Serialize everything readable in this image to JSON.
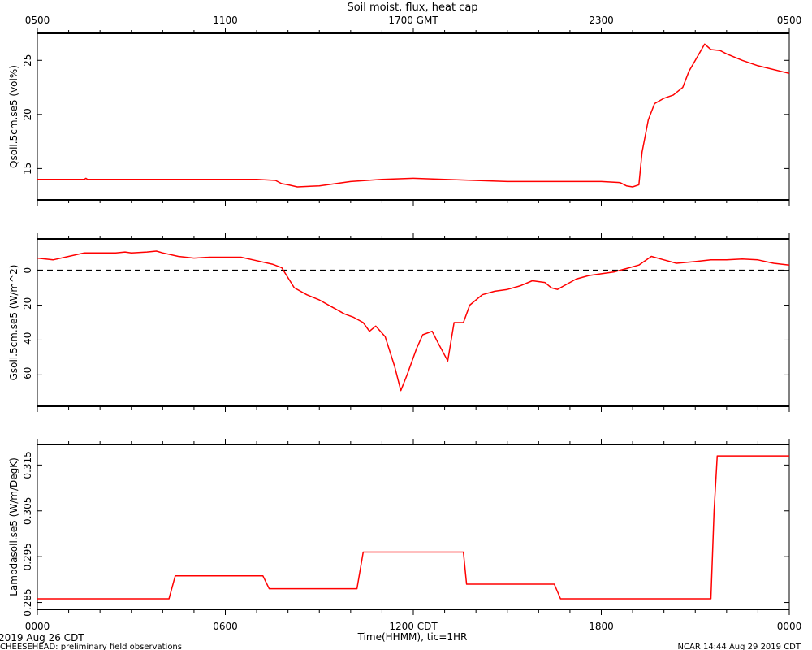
{
  "title": "Soil moist, flux, heat cap",
  "top_axis": {
    "ticks": [
      {
        "t": 0,
        "label": "0500"
      },
      {
        "t": 6,
        "label": "1100"
      },
      {
        "t": 12,
        "label": "1700 GMT"
      },
      {
        "t": 18,
        "label": "2300"
      },
      {
        "t": 24,
        "label": "0500"
      }
    ]
  },
  "bottom_axis": {
    "ticks": [
      {
        "t": 0,
        "label": "0000"
      },
      {
        "t": 6,
        "label": "0600"
      },
      {
        "t": 12,
        "label": "1200 CDT"
      },
      {
        "t": 18,
        "label": "1800"
      },
      {
        "t": 24,
        "label": "0000"
      }
    ],
    "xlabel": "Time(HHMM), tic=1HR",
    "date_label": "2019 Aug 26 CDT"
  },
  "footer": {
    "left": "CHEESEHEAD: preliminary field observations",
    "right": "NCAR 14:44 Aug 29 2019 CDT"
  },
  "colors": {
    "series": "#ff0000",
    "axes": "#000000"
  },
  "chart_data": [
    {
      "type": "line",
      "ylabel": "Qsoil.5cm.se5 (vol%)",
      "ylim": [
        12.1,
        27.5
      ],
      "yticks": [
        15,
        20,
        25
      ],
      "x": [
        0,
        1.5,
        1.55,
        1.6,
        1.7,
        2,
        4,
        6,
        7,
        7.6,
        7.8,
        8.0,
        8.3,
        9,
        10,
        11,
        12,
        13,
        15,
        17,
        18,
        18.6,
        18.8,
        19.0,
        19.2,
        19.3,
        19.5,
        19.7,
        20,
        20.3,
        20.6,
        20.8,
        21,
        21.3,
        21.5,
        21.8,
        22,
        22.5,
        23,
        24
      ],
      "y": [
        14.0,
        14.0,
        14.1,
        14.0,
        14.0,
        14.0,
        14.0,
        14.0,
        14.0,
        13.9,
        13.6,
        13.5,
        13.3,
        13.4,
        13.8,
        14.0,
        14.1,
        14.0,
        13.8,
        13.8,
        13.8,
        13.7,
        13.4,
        13.3,
        13.5,
        16.5,
        19.5,
        21.0,
        21.5,
        21.8,
        22.5,
        24.0,
        25.0,
        26.5,
        26.0,
        25.9,
        25.6,
        25.0,
        24.5,
        23.8
      ]
    },
    {
      "type": "line",
      "ylabel": "Gsoil.5cm.se5 (W/m^2)",
      "ylim": [
        -78,
        18
      ],
      "yticks": [
        -60,
        -40,
        -20,
        0
      ],
      "reference_line": 0,
      "x": [
        0,
        0.5,
        1,
        1.5,
        2,
        2.5,
        2.8,
        3,
        3.5,
        3.8,
        4,
        4.5,
        5,
        5.5,
        6,
        6.5,
        7,
        7.5,
        7.8,
        8.2,
        8.6,
        9,
        9.5,
        9.8,
        10.1,
        10.4,
        10.6,
        10.8,
        11.1,
        11.4,
        11.6,
        11.8,
        12.1,
        12.3,
        12.6,
        12.8,
        13.1,
        13.3,
        13.6,
        13.8,
        14.2,
        14.6,
        15,
        15.4,
        15.8,
        16.2,
        16.4,
        16.6,
        16.8,
        17.2,
        17.6,
        18,
        18.4,
        18.6,
        18.8,
        19.2,
        19.6,
        20,
        20.4,
        21,
        21.5,
        22,
        22.5,
        23,
        23.5,
        24
      ],
      "y": [
        7,
        6,
        8,
        10,
        10,
        10,
        10.5,
        10,
        10.5,
        11,
        10,
        8,
        7,
        7.5,
        7.5,
        7.5,
        5.5,
        3.5,
        1.5,
        -10,
        -14,
        -17,
        -22,
        -25,
        -27,
        -30,
        -35,
        -32,
        -38,
        -55,
        -69,
        -60,
        -45,
        -37,
        -35,
        -42,
        -52,
        -30,
        -30,
        -20,
        -14,
        -12,
        -11,
        -9,
        -6,
        -7,
        -10,
        -11,
        -9,
        -5,
        -3,
        -2,
        -1,
        0,
        1,
        3,
        8,
        6,
        4,
        5,
        6,
        6,
        6.5,
        6,
        4,
        3
      ]
    },
    {
      "type": "line",
      "ylabel": "Lambdasoil.se5 (W/m/DegK)",
      "ylim": [
        0.2835,
        0.3195
      ],
      "yticks": [
        0.285,
        0.295,
        0.305,
        0.315
      ],
      "x": [
        0,
        4.2,
        4.4,
        7.2,
        7.4,
        10.2,
        10.4,
        13.6,
        13.7,
        16.5,
        16.7,
        21.5,
        21.6,
        21.7,
        24
      ],
      "y": [
        0.2858,
        0.2858,
        0.2908,
        0.2908,
        0.288,
        0.288,
        0.296,
        0.296,
        0.289,
        0.289,
        0.2858,
        0.2858,
        0.305,
        0.317,
        0.317
      ]
    }
  ]
}
